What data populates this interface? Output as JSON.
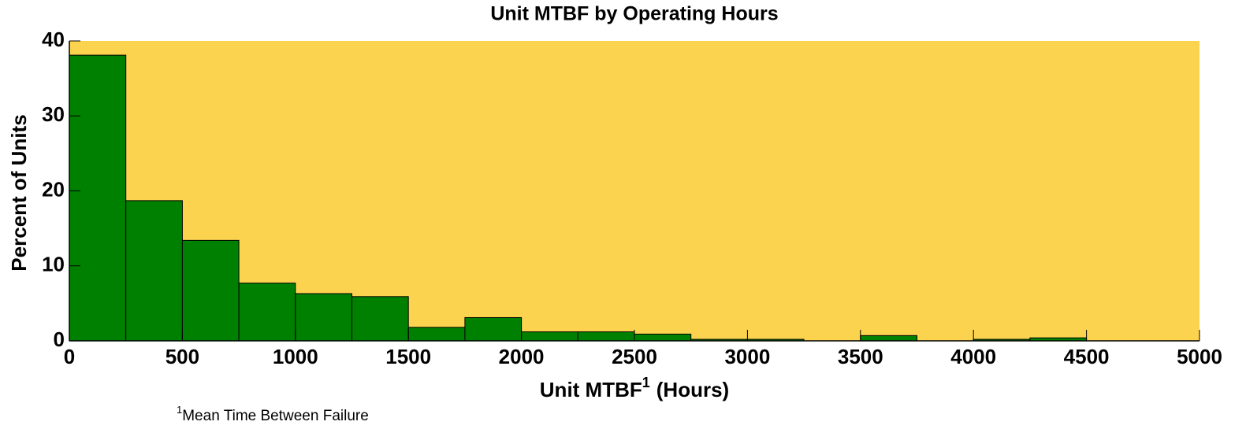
{
  "chart_data": {
    "type": "histogram",
    "title": "Unit MTBF by Operating Hours",
    "xlabel": "Unit MTBF",
    "xlabel_sup": "1",
    "xlabel_suffix": "(Hours)",
    "ylabel": "Percent of Units",
    "footnote_sup": "1",
    "footnote": "Mean Time Between Failure",
    "bins": [
      0,
      250,
      500,
      750,
      1000,
      1250,
      1500,
      1750,
      2000,
      2250,
      2500,
      2750,
      3000,
      3250,
      3500,
      3750,
      4000,
      4250,
      4500,
      4750,
      5000
    ],
    "values": [
      38.1,
      18.7,
      13.4,
      7.7,
      6.3,
      5.9,
      1.8,
      3.1,
      1.2,
      1.2,
      0.9,
      0.2,
      0.2,
      0,
      0.7,
      0,
      0.2,
      0.4,
      0,
      0
    ],
    "color": "#008000",
    "background": "#fcd34f",
    "xlim": [
      0,
      5000
    ],
    "xticks": [
      0,
      500,
      1000,
      1500,
      2000,
      2500,
      3000,
      3500,
      4000,
      4500,
      5000
    ],
    "ylim": [
      0,
      40
    ],
    "yticks": [
      0,
      10,
      20,
      30,
      40
    ]
  }
}
